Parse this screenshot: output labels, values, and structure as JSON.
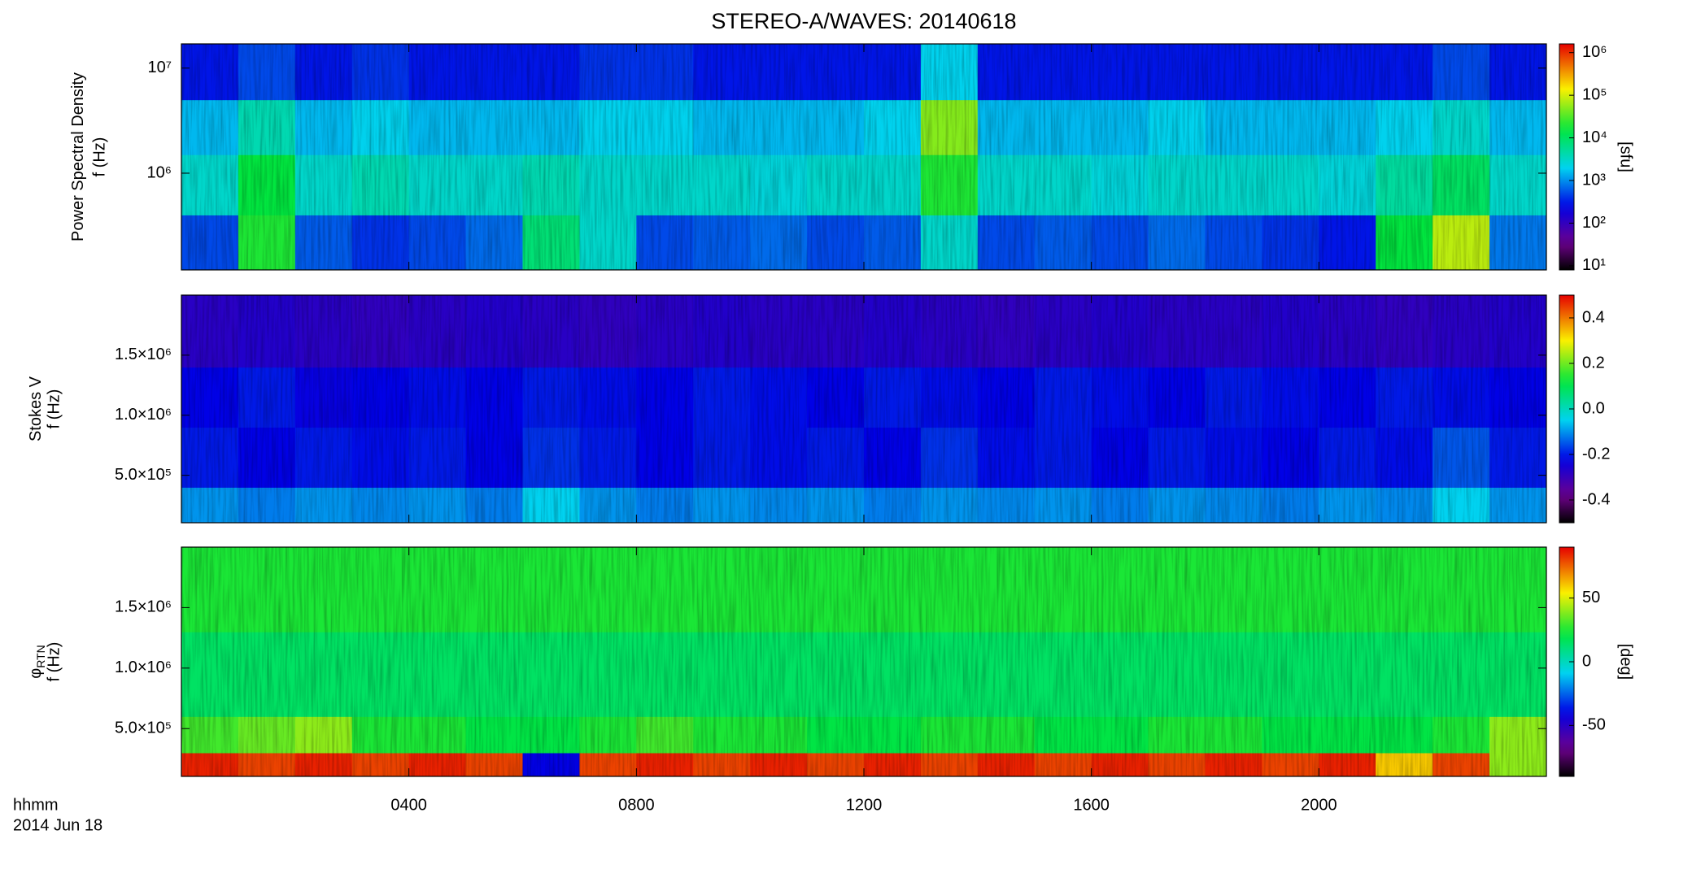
{
  "title": "STEREO-A/WAVES: 20140618",
  "time_axis": {
    "label": "hhmm",
    "date": "2014 Jun 18",
    "xlim": [
      0,
      24
    ],
    "xticks": [
      {
        "value": 4,
        "label": "0400"
      },
      {
        "value": 8,
        "label": "0800"
      },
      {
        "value": 12,
        "label": "1200"
      },
      {
        "value": 16,
        "label": "1600"
      },
      {
        "value": 20,
        "label": "2000"
      }
    ]
  },
  "chart_data": [
    {
      "type": "heatmap",
      "ylabel": "Power Spectral Density",
      "ylabel2": "f (Hz)",
      "yscale": "log",
      "ylim": [
        120000,
        17000000
      ],
      "yticks": [
        {
          "value": 1000000,
          "label": "10⁶"
        },
        {
          "value": 10000000,
          "label": "10⁷"
        }
      ],
      "colorbar_label": "[sfu]",
      "cscale": "log",
      "clim": [
        8,
        1600000
      ],
      "cticks": [
        {
          "value": 10,
          "label": "10¹"
        },
        {
          "value": 100,
          "label": "10²"
        },
        {
          "value": 1000,
          "label": "10³"
        },
        {
          "value": 10000,
          "label": "10⁴"
        },
        {
          "value": 100000,
          "label": "10⁵"
        },
        {
          "value": 1000000,
          "label": "10⁶"
        }
      ],
      "xbins": [
        0,
        1,
        2,
        3,
        4,
        5,
        6,
        7,
        8,
        9,
        10,
        11,
        12,
        13,
        14,
        15,
        16,
        17,
        18,
        19,
        20,
        21,
        22,
        23,
        24
      ],
      "ybins": [
        120000,
        400000,
        1500000,
        5000000,
        17000000
      ],
      "z": [
        [
          500,
          20000,
          600,
          400,
          500,
          700,
          8000,
          3000,
          500,
          600,
          700,
          500,
          600,
          3000,
          500,
          600,
          500,
          700,
          500,
          400,
          300,
          15000,
          80000,
          800
        ],
        [
          3000,
          15000,
          3000,
          4000,
          3000,
          3000,
          4000,
          3000,
          3000,
          3000,
          2500,
          3000,
          3000,
          20000,
          3000,
          3000,
          2500,
          3000,
          3000,
          3000,
          2500,
          5000,
          10000,
          3000
        ],
        [
          1500,
          4000,
          1500,
          2000,
          1500,
          1500,
          1500,
          2000,
          2000,
          1500,
          1500,
          1500,
          2000,
          50000,
          1500,
          1500,
          1500,
          2000,
          1500,
          1500,
          1500,
          2000,
          3000,
          1500
        ],
        [
          300,
          500,
          300,
          400,
          300,
          300,
          300,
          400,
          400,
          300,
          300,
          300,
          300,
          2000,
          300,
          300,
          300,
          300,
          300,
          300,
          300,
          300,
          500,
          300
        ]
      ]
    },
    {
      "type": "heatmap",
      "ylabel": "Stokes V",
      "ylabel2": "f (Hz)",
      "yscale": "linear",
      "ylim": [
        105000,
        2000000
      ],
      "yticks": [
        {
          "value": 500000,
          "label": "5.0×10⁵"
        },
        {
          "value": 1000000,
          "label": "1.0×10⁶"
        },
        {
          "value": 1500000,
          "label": "1.5×10⁶"
        }
      ],
      "cscale": "linear",
      "clim": [
        -0.5,
        0.5
      ],
      "cticks": [
        0.4,
        0.2,
        {
          "value": 0,
          "label": "0.0"
        },
        -0.2,
        -0.4
      ],
      "xbins": [
        0,
        1,
        2,
        3,
        4,
        5,
        6,
        7,
        8,
        9,
        10,
        11,
        12,
        13,
        14,
        15,
        16,
        17,
        18,
        19,
        20,
        21,
        22,
        23,
        24
      ],
      "ybins": [
        105000,
        400000,
        900000,
        1400000,
        2000000
      ],
      "z": [
        [
          -0.1,
          -0.12,
          -0.1,
          -0.11,
          -0.1,
          -0.12,
          -0.05,
          -0.1,
          -0.12,
          -0.1,
          -0.11,
          -0.1,
          -0.12,
          -0.1,
          -0.11,
          -0.1,
          -0.12,
          -0.1,
          -0.11,
          -0.12,
          -0.1,
          -0.11,
          -0.05,
          -0.1
        ],
        [
          -0.2,
          -0.22,
          -0.2,
          -0.21,
          -0.2,
          -0.22,
          -0.18,
          -0.2,
          -0.22,
          -0.2,
          -0.21,
          -0.2,
          -0.22,
          -0.18,
          -0.21,
          -0.2,
          -0.22,
          -0.2,
          -0.21,
          -0.22,
          -0.2,
          -0.21,
          -0.15,
          -0.2
        ],
        [
          -0.22,
          -0.2,
          -0.23,
          -0.22,
          -0.21,
          -0.22,
          -0.2,
          -0.21,
          -0.22,
          -0.2,
          -0.21,
          -0.22,
          -0.2,
          -0.21,
          -0.22,
          -0.2,
          -0.21,
          -0.22,
          -0.2,
          -0.21,
          -0.22,
          -0.2,
          -0.21,
          -0.22
        ],
        [
          -0.28,
          -0.27,
          -0.28,
          -0.29,
          -0.28,
          -0.27,
          -0.28,
          -0.29,
          -0.28,
          -0.27,
          -0.28,
          -0.28,
          -0.27,
          -0.28,
          -0.29,
          -0.28,
          -0.27,
          -0.28,
          -0.28,
          -0.27,
          -0.28,
          -0.29,
          -0.28,
          -0.27
        ]
      ]
    },
    {
      "type": "heatmap",
      "ylabel": "φ",
      "ylabel_subscript": "RTN",
      "ylabel2": "f (Hz)",
      "yscale": "linear",
      "ylim": [
        105000,
        2000000
      ],
      "yticks": [
        {
          "value": 500000,
          "label": "5.0×10⁵"
        },
        {
          "value": 1000000,
          "label": "1.0×10⁶"
        },
        {
          "value": 1500000,
          "label": "1.5×10⁶"
        }
      ],
      "colorbar_label": "[deg]",
      "cscale": "linear",
      "clim": [
        -90,
        90
      ],
      "cticks": [
        50,
        0,
        -50
      ],
      "xbins": [
        0,
        1,
        2,
        3,
        4,
        5,
        6,
        7,
        8,
        9,
        10,
        11,
        12,
        13,
        14,
        15,
        16,
        17,
        18,
        19,
        20,
        21,
        22,
        23,
        24
      ],
      "ybins": [
        105000,
        300000,
        600000,
        1300000,
        2000000
      ],
      "z": [
        [
          85,
          80,
          85,
          80,
          85,
          80,
          -40,
          80,
          85,
          80,
          85,
          80,
          85,
          80,
          85,
          80,
          85,
          80,
          85,
          80,
          85,
          60,
          80,
          40
        ],
        [
          30,
          35,
          40,
          25,
          25,
          20,
          20,
          25,
          30,
          25,
          25,
          20,
          20,
          25,
          25,
          20,
          20,
          25,
          25,
          20,
          20,
          20,
          25,
          40
        ],
        [
          15,
          15,
          15,
          15,
          15,
          15,
          15,
          15,
          15,
          15,
          15,
          15,
          15,
          15,
          15,
          15,
          15,
          15,
          15,
          15,
          15,
          15,
          15,
          15
        ],
        [
          25,
          25,
          25,
          25,
          25,
          25,
          25,
          25,
          25,
          25,
          25,
          25,
          25,
          25,
          25,
          25,
          25,
          25,
          25,
          25,
          25,
          25,
          25,
          25
        ]
      ]
    }
  ]
}
